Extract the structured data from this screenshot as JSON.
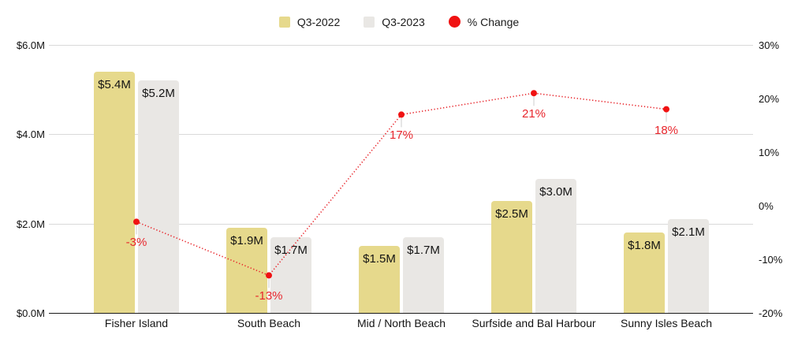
{
  "chart_data": {
    "type": "bar+line",
    "title": "",
    "categories": [
      "Fisher Island",
      "South Beach",
      "Mid / North Beach",
      "Surfside and Bal Harbour",
      "Sunny Isles Beach"
    ],
    "legend": [
      {
        "label": "Q3-2022",
        "marker": "square",
        "color": "#e6d98c"
      },
      {
        "label": "Q3-2023",
        "marker": "square",
        "color": "#e9e7e4"
      },
      {
        "label": "% Change",
        "marker": "circle",
        "color": "#f01212"
      }
    ],
    "bar_series": [
      {
        "name": "Q3-2022",
        "color": "#e6d98c",
        "values_musd": [
          5.4,
          1.9,
          1.5,
          2.5,
          1.8
        ],
        "labels": [
          "$5.4M",
          "$1.9M",
          "$1.5M",
          "$2.5M",
          "$1.8M"
        ]
      },
      {
        "name": "Q3-2023",
        "color": "#e9e7e4",
        "values_musd": [
          5.2,
          1.7,
          1.7,
          3.0,
          2.1
        ],
        "labels": [
          "$5.2M",
          "$1.7M",
          "$1.7M",
          "$3.0M",
          "$2.1M"
        ]
      }
    ],
    "line_series": {
      "name": "% Change",
      "line_color": "#e8262c",
      "marker_color": "#f01212",
      "leader_color": "#cccccc",
      "values_pct": [
        -3,
        -13,
        17,
        21,
        18
      ],
      "labels": [
        "-3%",
        "-13%",
        "17%",
        "21%",
        "18%"
      ]
    },
    "left_axis": {
      "ticks": [
        "$6.0M",
        "$4.0M",
        "$2.0M",
        "$0.0M"
      ],
      "values": [
        6,
        4,
        2,
        0
      ],
      "range": [
        0,
        6
      ]
    },
    "right_axis": {
      "ticks": [
        "30%",
        "20%",
        "10%",
        "0%",
        "-10%",
        "-20%"
      ],
      "values": [
        30,
        20,
        10,
        0,
        -10,
        -20
      ],
      "range": [
        -20,
        30
      ]
    },
    "grid": "horizontal",
    "legend_position": "top-center"
  }
}
